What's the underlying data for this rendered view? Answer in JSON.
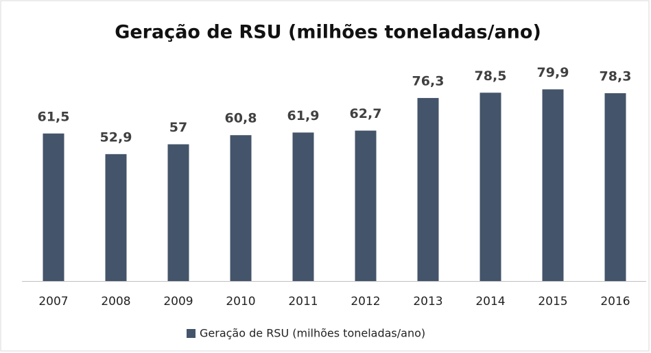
{
  "chart_data": {
    "type": "bar",
    "title": "Geração de RSU (milhões toneladas/ano)",
    "categories": [
      "2007",
      "2008",
      "2009",
      "2010",
      "2011",
      "2012",
      "2013",
      "2014",
      "2015",
      "2016"
    ],
    "series": [
      {
        "name": "Geração de RSU (milhões toneladas/ano)",
        "color": "#44546a",
        "values": [
          61.5,
          52.9,
          57,
          60.8,
          61.9,
          62.7,
          76.3,
          78.5,
          79.9,
          78.3
        ],
        "value_labels": [
          "61,5",
          "52,9",
          "57",
          "60,8",
          "61,9",
          "62,7",
          "76,3",
          "78,5",
          "79,9",
          "78,3"
        ]
      }
    ],
    "legend": "bottom"
  }
}
